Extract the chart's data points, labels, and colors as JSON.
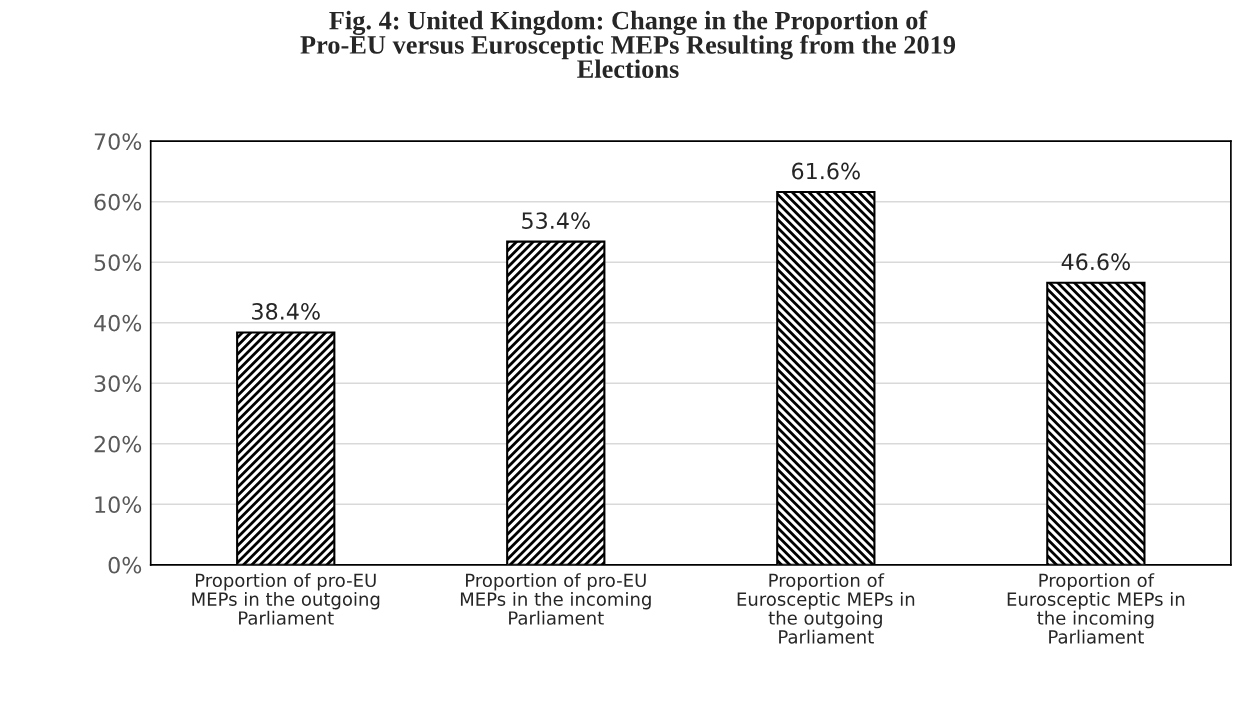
{
  "chart_data": {
    "type": "bar",
    "title": "Fig. 4: United Kingdom: Change in the Proportion of\nPro-EU versus Eurosceptic MEPs Resulting from the 2019\nElections",
    "categories": [
      "Proportion of pro-EU\nMEPs in the outgoing\nParliament",
      "Proportion of pro-EU\nMEPs in the incoming\nParliament",
      "Proportion of\nEurosceptic MEPs in\nthe outgoing\nParliament",
      "Proportion of\nEurosceptic MEPs in\nthe incoming\nParliament"
    ],
    "values": [
      38.4,
      53.4,
      61.6,
      46.6
    ],
    "value_labels": [
      "38.4%",
      "53.4%",
      "61.6%",
      "46.6%"
    ],
    "colors": [
      "#000000",
      "#000000",
      "#000000",
      "#000000"
    ],
    "ylim": [
      0,
      70
    ],
    "yticks": [
      {
        "value": 0,
        "label": "0%"
      },
      {
        "value": 10,
        "label": "10%"
      },
      {
        "value": 20,
        "label": "20%"
      },
      {
        "value": 30,
        "label": "30%"
      },
      {
        "value": 40,
        "label": "40%"
      },
      {
        "value": 50,
        "label": "50%"
      },
      {
        "value": 60,
        "label": "60%"
      },
      {
        "value": 70,
        "label": "70%"
      }
    ],
    "grid": "y",
    "legend": false
  }
}
